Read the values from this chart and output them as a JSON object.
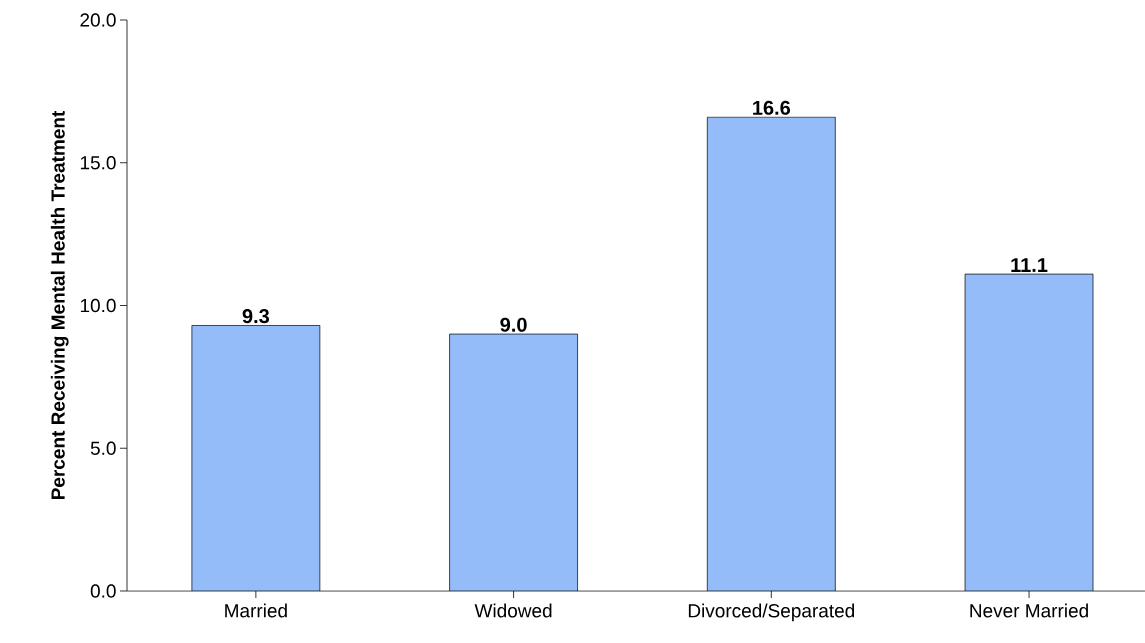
{
  "chart_data": {
    "type": "bar",
    "ylabel": "Percent Receiving Mental Health Treatment",
    "categories": [
      "Married",
      "Widowed",
      "Divorced/Separated",
      "Never Married"
    ],
    "values": [
      9.3,
      9.0,
      16.6,
      11.1
    ],
    "value_labels": [
      "9.3",
      "9.0",
      "16.6",
      "11.1"
    ],
    "color": "#94bcf8",
    "ylim": [
      0,
      20
    ],
    "yticks": [
      {
        "value": 0,
        "label": "0.0"
      },
      {
        "value": 5,
        "label": "5.0"
      },
      {
        "value": 10,
        "label": "10.0"
      },
      {
        "value": 15,
        "label": "15.0"
      },
      {
        "value": 20,
        "label": "20.0"
      }
    ],
    "grid": false
  }
}
